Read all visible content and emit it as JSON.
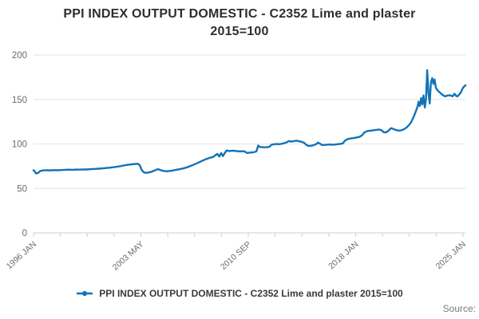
{
  "title": {
    "line1": "PPI INDEX OUTPUT DOMESTIC - C2352 Lime and plaster",
    "line2": "2015=100"
  },
  "legend": {
    "label": "PPI INDEX OUTPUT DOMESTIC - C2352 Lime and plaster 2015=100",
    "marker": "line-with-dot"
  },
  "source_label": "Source:",
  "colors": {
    "line": "#1273b8",
    "grid": "#e4e4e4",
    "axis": "#c5d0de",
    "tick_label": "#6b6b6b",
    "title_text": "#2e2e2e",
    "legend_text": "#3a3a3a",
    "source_text": "#7a7a7a"
  },
  "chart_data": {
    "type": "line",
    "title": "PPI INDEX OUTPUT DOMESTIC - C2352 Lime and plaster 2015=100",
    "xlabel": "",
    "ylabel": "",
    "grid": "horizontal-only",
    "legend_position": "bottom",
    "x_axis": {
      "range": [
        1996.0,
        2025.0
      ],
      "major_ticks": [
        "1996 JAN",
        "2003 MAY",
        "2010 SEP",
        "2018 JAN",
        "2025 JAN"
      ],
      "minor_tick_divisions": 16
    },
    "y_axis": {
      "range": [
        0,
        200
      ],
      "ticks": [
        0,
        50,
        100,
        150,
        200
      ]
    },
    "series": [
      {
        "name": "PPI INDEX OUTPUT DOMESTIC - C2352 Lime and plaster 2015=100",
        "color": "#1273b8",
        "points": [
          [
            1996.0,
            70.5
          ],
          [
            1996.08,
            69.2
          ],
          [
            1996.17,
            66.8
          ],
          [
            1996.29,
            67.3
          ],
          [
            1996.46,
            69.6
          ],
          [
            1996.63,
            70.2
          ],
          [
            1996.88,
            70.5
          ],
          [
            1997.13,
            70.3
          ],
          [
            1997.38,
            70.6
          ],
          [
            1997.63,
            70.4
          ],
          [
            1997.88,
            70.7
          ],
          [
            1998.13,
            70.9
          ],
          [
            1998.38,
            71.1
          ],
          [
            1998.63,
            70.9
          ],
          [
            1998.88,
            71.2
          ],
          [
            1999.13,
            71.1
          ],
          [
            1999.38,
            71.4
          ],
          [
            1999.63,
            71.3
          ],
          [
            1999.88,
            71.7
          ],
          [
            2000.13,
            71.9
          ],
          [
            2000.38,
            72.2
          ],
          [
            2000.63,
            72.5
          ],
          [
            2000.88,
            72.9
          ],
          [
            2001.13,
            73.3
          ],
          [
            2001.38,
            73.8
          ],
          [
            2001.63,
            74.4
          ],
          [
            2001.88,
            75.1
          ],
          [
            2002.13,
            75.9
          ],
          [
            2002.38,
            76.6
          ],
          [
            2002.63,
            77.1
          ],
          [
            2002.88,
            77.5
          ],
          [
            2003.04,
            77.7
          ],
          [
            2003.17,
            76.2
          ],
          [
            2003.29,
            71.0
          ],
          [
            2003.46,
            67.9
          ],
          [
            2003.63,
            67.6
          ],
          [
            2003.79,
            68.0
          ],
          [
            2003.96,
            68.7
          ],
          [
            2004.13,
            69.8
          ],
          [
            2004.29,
            71.0
          ],
          [
            2004.42,
            71.7
          ],
          [
            2004.54,
            70.8
          ],
          [
            2004.71,
            69.9
          ],
          [
            2004.88,
            69.4
          ],
          [
            2005.04,
            69.3
          ],
          [
            2005.21,
            69.7
          ],
          [
            2005.42,
            70.2
          ],
          [
            2005.63,
            70.9
          ],
          [
            2005.88,
            71.7
          ],
          [
            2006.13,
            72.6
          ],
          [
            2006.38,
            73.8
          ],
          [
            2006.63,
            75.4
          ],
          [
            2006.88,
            77.2
          ],
          [
            2007.13,
            79.0
          ],
          [
            2007.38,
            81.0
          ],
          [
            2007.63,
            82.8
          ],
          [
            2007.88,
            84.3
          ],
          [
            2008.13,
            85.5
          ],
          [
            2008.29,
            87.5
          ],
          [
            2008.42,
            88.7
          ],
          [
            2008.54,
            85.8
          ],
          [
            2008.67,
            89.8
          ],
          [
            2008.79,
            86.3
          ],
          [
            2008.92,
            90.0
          ],
          [
            2009.04,
            92.8
          ],
          [
            2009.21,
            92.0
          ],
          [
            2009.46,
            92.4
          ],
          [
            2009.71,
            92.0
          ],
          [
            2009.96,
            91.6
          ],
          [
            2010.21,
            91.9
          ],
          [
            2010.42,
            89.8
          ],
          [
            2010.63,
            90.3
          ],
          [
            2010.88,
            90.8
          ],
          [
            2011.04,
            91.5
          ],
          [
            2011.13,
            95.8
          ],
          [
            2011.17,
            98.3
          ],
          [
            2011.25,
            96.8
          ],
          [
            2011.42,
            96.4
          ],
          [
            2011.58,
            96.2
          ],
          [
            2011.75,
            96.4
          ],
          [
            2011.92,
            96.8
          ],
          [
            2012.08,
            99.2
          ],
          [
            2012.25,
            99.7
          ],
          [
            2012.42,
            99.9
          ],
          [
            2012.58,
            99.7
          ],
          [
            2012.75,
            100.2
          ],
          [
            2012.92,
            100.9
          ],
          [
            2013.08,
            101.7
          ],
          [
            2013.25,
            103.3
          ],
          [
            2013.42,
            102.6
          ],
          [
            2013.58,
            103.2
          ],
          [
            2013.75,
            103.7
          ],
          [
            2013.92,
            103.1
          ],
          [
            2014.08,
            102.4
          ],
          [
            2014.25,
            101.6
          ],
          [
            2014.42,
            99.0
          ],
          [
            2014.58,
            97.7
          ],
          [
            2014.75,
            98.0
          ],
          [
            2014.92,
            98.6
          ],
          [
            2015.08,
            99.8
          ],
          [
            2015.21,
            101.5
          ],
          [
            2015.33,
            100.4
          ],
          [
            2015.5,
            98.7
          ],
          [
            2015.67,
            98.9
          ],
          [
            2015.83,
            99.2
          ],
          [
            2016.0,
            99.5
          ],
          [
            2016.17,
            99.1
          ],
          [
            2016.33,
            99.3
          ],
          [
            2016.5,
            99.7
          ],
          [
            2016.71,
            100.0
          ],
          [
            2016.88,
            100.6
          ],
          [
            2017.04,
            103.9
          ],
          [
            2017.21,
            105.4
          ],
          [
            2017.42,
            106.2
          ],
          [
            2017.63,
            106.7
          ],
          [
            2017.83,
            107.3
          ],
          [
            2018.0,
            107.9
          ],
          [
            2018.17,
            109.6
          ],
          [
            2018.33,
            112.8
          ],
          [
            2018.5,
            114.3
          ],
          [
            2018.67,
            114.8
          ],
          [
            2018.83,
            115.1
          ],
          [
            2019.0,
            115.5
          ],
          [
            2019.17,
            115.9
          ],
          [
            2019.33,
            116.2
          ],
          [
            2019.5,
            115.4
          ],
          [
            2019.63,
            113.3
          ],
          [
            2019.79,
            112.9
          ],
          [
            2019.96,
            114.8
          ],
          [
            2020.08,
            117.0
          ],
          [
            2020.17,
            117.7
          ],
          [
            2020.33,
            116.6
          ],
          [
            2020.5,
            115.5
          ],
          [
            2020.67,
            115.0
          ],
          [
            2020.83,
            115.3
          ],
          [
            2021.0,
            116.5
          ],
          [
            2021.17,
            118.3
          ],
          [
            2021.33,
            120.8
          ],
          [
            2021.5,
            124.5
          ],
          [
            2021.58,
            127.5
          ],
          [
            2021.67,
            130.5
          ],
          [
            2021.75,
            134.0
          ],
          [
            2021.83,
            137.5
          ],
          [
            2021.92,
            141.5
          ],
          [
            2022.0,
            147.5
          ],
          [
            2022.08,
            142.5
          ],
          [
            2022.17,
            151.5
          ],
          [
            2022.25,
            144.5
          ],
          [
            2022.33,
            154.5
          ],
          [
            2022.42,
            141.0
          ],
          [
            2022.5,
            150.5
          ],
          [
            2022.58,
            183.0
          ],
          [
            2022.67,
            157.0
          ],
          [
            2022.75,
            145.5
          ],
          [
            2022.83,
            169.0
          ],
          [
            2022.92,
            174.0
          ],
          [
            2023.0,
            167.5
          ],
          [
            2023.08,
            172.5
          ],
          [
            2023.17,
            163.0
          ],
          [
            2023.29,
            160.0
          ],
          [
            2023.46,
            157.5
          ],
          [
            2023.63,
            155.0
          ],
          [
            2023.79,
            153.5
          ],
          [
            2023.96,
            154.5
          ],
          [
            2024.13,
            154.8
          ],
          [
            2024.29,
            153.5
          ],
          [
            2024.42,
            156.5
          ],
          [
            2024.54,
            154.0
          ],
          [
            2024.63,
            153.5
          ],
          [
            2024.79,
            156.5
          ],
          [
            2024.88,
            159.0
          ],
          [
            2024.96,
            162.0
          ],
          [
            2025.04,
            164.0
          ],
          [
            2025.17,
            166.0
          ]
        ]
      }
    ]
  }
}
